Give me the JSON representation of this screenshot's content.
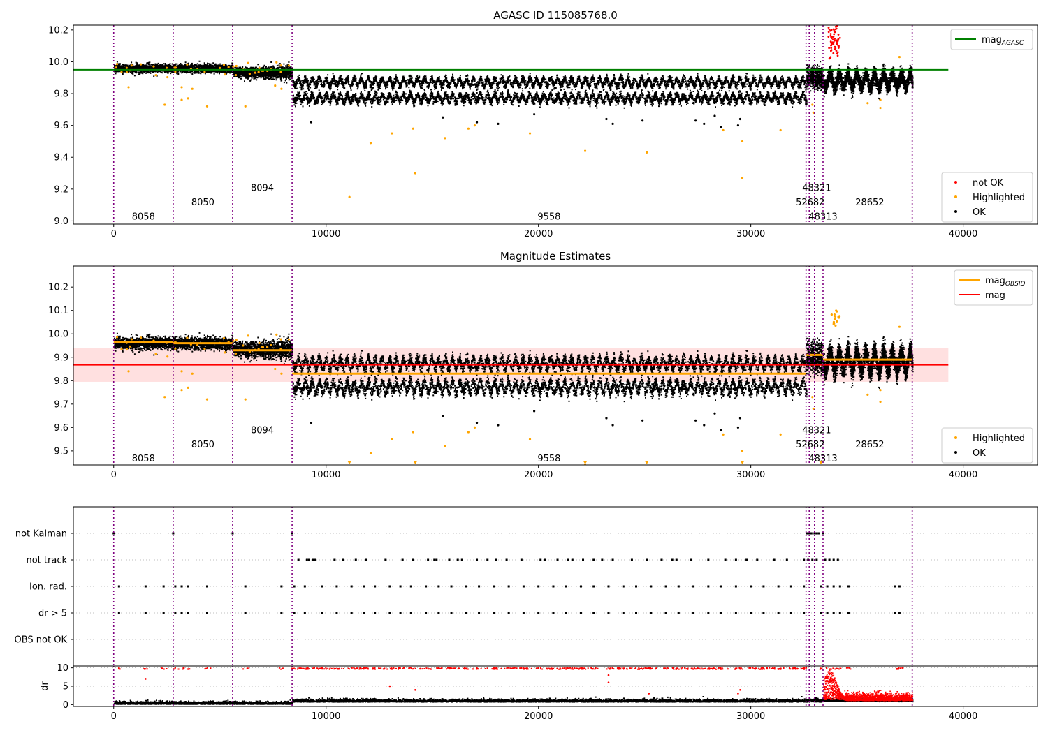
{
  "chart_data": [
    {
      "type": "scatter",
      "title": "AGASC ID 115085768.0",
      "xlabel": "",
      "ylabel": "",
      "xlim": [
        -1900,
        43500
      ],
      "ylim": [
        8.98,
        10.23
      ],
      "xticks": [
        0,
        10000,
        20000,
        30000,
        40000
      ],
      "yticks": [
        9.0,
        9.2,
        9.4,
        9.6,
        9.8,
        10.0,
        10.2
      ],
      "ytick_labels": [
        "9.0",
        "9.2",
        "9.4",
        "9.6",
        "9.8",
        "10.0",
        "10.2"
      ],
      "legend_top": {
        "position": "top-right",
        "entries": [
          {
            "label": "mag",
            "sub": "AGASC",
            "color": "#008000",
            "kind": "line"
          }
        ]
      },
      "legend_bottom": {
        "position": "lower-right",
        "entries": [
          {
            "label": "not OK",
            "color": "#ff0000",
            "kind": "point"
          },
          {
            "label": "Highlighted",
            "color": "#ffa500",
            "kind": "point"
          },
          {
            "label": "OK",
            "color": "#000000",
            "kind": "point"
          }
        ]
      },
      "mag_agasc": {
        "value": 9.95,
        "x_range": [
          -1900,
          39300
        ],
        "color": "#008000"
      },
      "obsid_boundaries": [
        0,
        2800,
        5600,
        8400,
        32600,
        32750,
        33000,
        33400,
        37600
      ],
      "obsid_labels": [
        {
          "text": "8058",
          "x": 1400,
          "y": 9.03
        },
        {
          "text": "8050",
          "x": 4200,
          "y": 9.12
        },
        {
          "text": "8094",
          "x": 7000,
          "y": 9.21
        },
        {
          "text": "9558",
          "x": 20500,
          "y": 9.03
        },
        {
          "text": "48321",
          "x": 33100,
          "y": 9.21
        },
        {
          "text": "52682",
          "x": 32800,
          "y": 9.12
        },
        {
          "text": "48313",
          "x": 33400,
          "y": 9.03
        },
        {
          "text": "28652",
          "x": 35600,
          "y": 9.12
        }
      ],
      "segments": [
        {
          "x": [
            0,
            2800
          ],
          "mag": 9.965
        },
        {
          "x": [
            2800,
            5600
          ],
          "mag": 9.96
        },
        {
          "x": [
            5600,
            8400
          ],
          "mag": 9.93
        },
        {
          "x": [
            8400,
            32600
          ],
          "mag": 9.83
        },
        {
          "x": [
            32600,
            33400
          ],
          "mag": 9.91
        },
        {
          "x": [
            33400,
            37600
          ],
          "mag": 9.89
        }
      ],
      "highlighted_points": [
        [
          700,
          9.84
        ],
        [
          2400,
          9.73
        ],
        [
          3200,
          9.84
        ],
        [
          3200,
          9.76
        ],
        [
          3500,
          9.77
        ],
        [
          3700,
          9.83
        ],
        [
          4400,
          9.72
        ],
        [
          6200,
          9.72
        ],
        [
          7600,
          9.85
        ],
        [
          7900,
          9.83
        ],
        [
          11100,
          9.15
        ],
        [
          12100,
          9.49
        ],
        [
          13100,
          9.55
        ],
        [
          14100,
          9.58
        ],
        [
          14200,
          9.3
        ],
        [
          15600,
          9.52
        ],
        [
          16700,
          9.58
        ],
        [
          17000,
          9.6
        ],
        [
          19600,
          9.55
        ],
        [
          22200,
          9.44
        ],
        [
          25100,
          9.43
        ],
        [
          28700,
          9.57
        ],
        [
          29600,
          9.5
        ],
        [
          29600,
          9.27
        ],
        [
          31400,
          9.57
        ],
        [
          32900,
          9.73
        ],
        [
          32950,
          9.68
        ],
        [
          35500,
          9.74
        ],
        [
          36100,
          9.71
        ],
        [
          36100,
          9.76
        ],
        [
          37000,
          10.03
        ]
      ],
      "ok_outliers": [
        [
          9300,
          9.62
        ],
        [
          15500,
          9.65
        ],
        [
          17100,
          9.62
        ],
        [
          18100,
          9.61
        ],
        [
          19800,
          9.67
        ],
        [
          23200,
          9.64
        ],
        [
          23500,
          9.61
        ],
        [
          24900,
          9.63
        ],
        [
          27400,
          9.63
        ],
        [
          27800,
          9.61
        ],
        [
          28300,
          9.66
        ],
        [
          28600,
          9.59
        ],
        [
          29400,
          9.6
        ],
        [
          29500,
          9.64
        ]
      ],
      "not_ok_points": [
        [
          33800,
          10.2
        ],
        [
          33900,
          10.12
        ],
        [
          34000,
          10.22
        ],
        [
          34100,
          10.06
        ],
        [
          34200,
          10.15
        ],
        [
          33700,
          10.02
        ]
      ]
    },
    {
      "type": "scatter",
      "title": "Magnitude Estimates",
      "xlabel": "",
      "ylabel": "",
      "xlim": [
        -1900,
        43500
      ],
      "ylim": [
        9.44,
        10.29
      ],
      "xticks": [
        0,
        10000,
        20000,
        30000,
        40000
      ],
      "yticks": [
        9.5,
        9.6,
        9.7,
        9.8,
        9.9,
        10.0,
        10.1,
        10.2
      ],
      "ytick_labels": [
        "9.5",
        "9.6",
        "9.7",
        "9.8",
        "9.9",
        "10.0",
        "10.1",
        "10.2"
      ],
      "legend_top": {
        "position": "top-right",
        "entries": [
          {
            "label": "mag",
            "sub": "OBSID",
            "color": "#ffa500",
            "kind": "line"
          },
          {
            "label": "mag",
            "sub": "",
            "color": "#ff0000",
            "kind": "line"
          }
        ]
      },
      "legend_bottom": {
        "position": "lower-right",
        "entries": [
          {
            "label": "Highlighted",
            "color": "#ffa500",
            "kind": "point"
          },
          {
            "label": "OK",
            "color": "#000000",
            "kind": "point"
          }
        ]
      },
      "mag": {
        "value": 9.867,
        "band": [
          9.795,
          9.94
        ],
        "x_range": [
          -1900,
          39300
        ],
        "color": "#ff0000"
      },
      "obsid_labels": [
        {
          "text": "8058",
          "x": 1400,
          "y": 9.47
        },
        {
          "text": "8050",
          "x": 4200,
          "y": 9.53
        },
        {
          "text": "8094",
          "x": 7000,
          "y": 9.59
        },
        {
          "text": "9558",
          "x": 20500,
          "y": 9.47
        },
        {
          "text": "48321",
          "x": 33100,
          "y": 9.59
        },
        {
          "text": "52682",
          "x": 32800,
          "y": 9.53
        },
        {
          "text": "48313",
          "x": 33400,
          "y": 9.47
        },
        {
          "text": "28652",
          "x": 35600,
          "y": 9.53
        }
      ],
      "clipped_markers": [
        11100,
        14200,
        22200,
        25100,
        29600,
        33300
      ]
    },
    {
      "type": "scatter",
      "title": "",
      "xlabel": "",
      "ylabel": "",
      "categories": [
        "not Kalman",
        "not track",
        "Ion. rad.",
        "dr > 5",
        "OBS not OK"
      ],
      "xlim": [
        -1900,
        43500
      ],
      "flag_points": {
        "not Kalman": [
          0,
          2800,
          5600,
          8400,
          32650,
          32750,
          32850,
          33000,
          33100,
          33200,
          33400
        ],
        "not track": [
          8700,
          9100,
          9200,
          9400,
          9500,
          10400,
          10800,
          11400,
          11900,
          12800,
          13600,
          14100,
          14800,
          15100,
          15200,
          15800,
          16200,
          16400,
          17100,
          17600,
          18000,
          18500,
          19200,
          20100,
          20300,
          20900,
          21400,
          21600,
          22100,
          22600,
          23000,
          23500,
          24400,
          25100,
          25800,
          26300,
          26500,
          27200,
          28000,
          28800,
          29300,
          29800,
          30300,
          31100,
          31700,
          32500,
          32700,
          32900,
          33100,
          33500,
          33700,
          33900,
          34100
        ],
        "Ion. rad.": [
          250,
          1500,
          2350,
          2900,
          3200,
          3500,
          4400,
          6200,
          7900,
          8500,
          9000,
          9800,
          10500,
          11200,
          11800,
          12300,
          13000,
          13500,
          14000,
          14700,
          15300,
          15900,
          16600,
          17200,
          17900,
          18600,
          19300,
          20000,
          20700,
          21300,
          22000,
          22600,
          23300,
          24000,
          24600,
          25300,
          26000,
          26600,
          27300,
          28000,
          28600,
          29300,
          30000,
          30600,
          31300,
          31900,
          32500,
          33300,
          33600,
          33900,
          34200,
          34600,
          36800,
          37000
        ],
        "dr > 5": [
          250,
          1500,
          2350,
          2900,
          3200,
          3500,
          4400,
          6200,
          7900,
          8500,
          9000,
          9800,
          10500,
          11200,
          11800,
          12300,
          13000,
          13500,
          14000,
          14700,
          15300,
          15900,
          16600,
          17200,
          17900,
          18600,
          19300,
          20000,
          20700,
          21300,
          22000,
          22600,
          23300,
          24000,
          24600,
          25300,
          26000,
          26600,
          27300,
          28000,
          28600,
          29300,
          30000,
          30600,
          31300,
          31900,
          32500,
          33300,
          33600,
          33900,
          34200,
          34600,
          36800,
          37000
        ],
        "OBS not OK": []
      }
    },
    {
      "type": "scatter",
      "title": "",
      "xlabel": "",
      "ylabel": "dr",
      "xlim": [
        -1900,
        43500
      ],
      "ylim": [
        -0.5,
        10.5
      ],
      "xticks": [
        0,
        10000,
        20000,
        30000,
        40000
      ],
      "yticks": [
        0,
        5,
        10
      ],
      "ytick_labels": [
        "0",
        "5",
        "10"
      ],
      "red_outliers": [
        [
          1500,
          7
        ],
        [
          13000,
          5
        ],
        [
          14200,
          4
        ],
        [
          23300,
          8
        ],
        [
          23300,
          6
        ],
        [
          25200,
          3
        ],
        [
          29400,
          3
        ],
        [
          29500,
          4
        ]
      ]
    }
  ]
}
